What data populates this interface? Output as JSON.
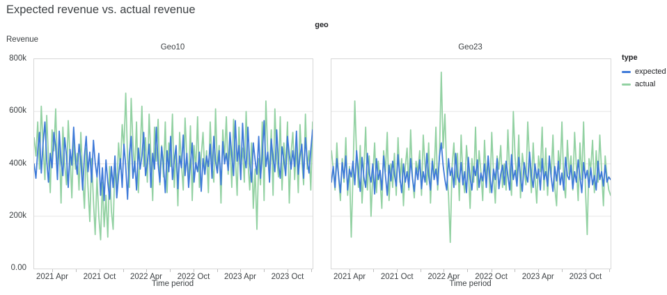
{
  "title": "Expected revenue vs. actual revenue",
  "chart_data": {
    "type": "line",
    "facet_title": "geo",
    "ylabel": "Revenue",
    "xlabel": "Time period",
    "value_unit": "thousands",
    "x_range": [
      "2021 Jan",
      "2024 Jan"
    ],
    "x_interval": "weekly",
    "ylim": [
      0,
      800000
    ],
    "y_max": 800,
    "grid_on": true,
    "grid_color": "#e6e6e6",
    "y_gridlines": [
      200,
      400,
      600
    ],
    "y_ticks": [
      {
        "label": "800k",
        "value": 800
      },
      {
        "label": "600k",
        "value": 600
      },
      {
        "label": "400k",
        "value": 400
      },
      {
        "label": "200k",
        "value": 200
      },
      {
        "label": "0.00",
        "value": 0
      }
    ],
    "x_ticks_major": [
      {
        "label": "2021 Apr",
        "f": 0.0675
      },
      {
        "label": "2021 Oct",
        "f": 0.2375
      },
      {
        "label": "2022 Apr",
        "f": 0.405
      },
      {
        "label": "2022 Oct",
        "f": 0.575
      },
      {
        "label": "2023 Apr",
        "f": 0.7425
      },
      {
        "label": "2023 Oct",
        "f": 0.9125
      }
    ],
    "x_ticks_minor_f": [
      0.1525,
      0.3213,
      0.49,
      0.6588,
      0.8275,
      0.9963
    ],
    "legend": {
      "title": "type",
      "position": "right",
      "items": [
        {
          "label": "expected",
          "color": "#3d79d8"
        },
        {
          "label": "actual",
          "color": "#92d1a2"
        }
      ]
    },
    "panels": [
      {
        "title": "Geo10",
        "series": [
          {
            "name": "actual",
            "color": "#92d1a2",
            "values": [
              500,
              430,
              560,
              380,
              620,
              470,
              340,
              585,
              420,
              290,
              530,
              450,
              610,
              365,
              480,
              250,
              540,
              400,
              320,
              565,
              430,
              270,
              495,
              380,
              440,
              300,
              520,
              350,
              230,
              460,
              310,
              180,
              420,
              260,
              130,
              350,
              200,
              110,
              330,
              160,
              280,
              120,
              390,
              220,
              150,
              410,
              300,
              480,
              380,
              550,
              460,
              670,
              420,
              310,
              650,
              480,
              370,
              560,
              290,
              440,
              620,
              390,
              500,
              330,
              590,
              430,
              260,
              540,
              410,
              570,
              320,
              470,
              350,
              560,
              290,
              480,
              390,
              590,
              310,
              450,
              240,
              520,
              400,
              300,
              575,
              420,
              330,
              545,
              260,
              470,
              380,
              580,
              310,
              430,
              520,
              360,
              450,
              290,
              560,
              400,
              330,
              610,
              380,
              470,
              250,
              530,
              420,
              580,
              360,
              490,
              310,
              570,
              430,
              280,
              540,
              390,
              460,
              330,
              600,
              410,
              300,
              480,
              230,
              380,
              150,
              420,
              320,
              560,
              260,
              640,
              450,
              370,
              530,
              280,
              610,
              420,
              350,
              580,
              300,
              480,
              390,
              560,
              250,
              440,
              520,
              340,
              470,
              290,
              550,
              410,
              320,
              590,
              380,
              450,
              300,
              560
            ]
          },
          {
            "name": "expected",
            "color": "#3d79d8",
            "values": [
              400,
              345,
              450,
              520,
              365,
              480,
              560,
              415,
              330,
              440,
              385,
              520,
              465,
              340,
              525,
              410,
              355,
              500,
              430,
              310,
              455,
              395,
              540,
              420,
              360,
              475,
              415,
              300,
              430,
              505,
              370,
              445,
              330,
              490,
              405,
              350,
              440,
              280,
              385,
              260,
              415,
              330,
              265,
              390,
              310,
              430,
              270,
              355,
              420,
              310,
              475,
              390,
              265,
              435,
              505,
              345,
              410,
              300,
              460,
              380,
              430,
              520,
              355,
              405,
              475,
              310,
              440,
              380,
              540,
              400,
              330,
              465,
              395,
              290,
              450,
              370,
              505,
              340,
              415,
              470,
              305,
              430,
              385,
              510,
              355,
              440,
              310,
              400,
              480,
              330,
              405,
              370,
              445,
              295,
              420,
              360,
              430,
              390,
              475,
              345,
              505,
              410,
              365,
              450,
              320,
              485,
              400,
              440,
              375,
              520,
              430,
              355,
              565,
              410,
              470,
              340,
              555,
              425,
              385,
              540,
              400,
              330,
              480,
              415,
              360,
              505,
              345,
              435,
              565,
              390,
              445,
              330,
              495,
              420,
              370,
              530,
              400,
              345,
              465,
              415,
              355,
              505,
              435,
              380,
              450,
              390,
              525,
              360,
              430,
              475,
              345,
              500,
              410,
              365,
              455,
              530
            ]
          }
        ]
      },
      {
        "title": "Geo23",
        "series": [
          {
            "name": "actual",
            "color": "#92d1a2",
            "values": [
              450,
              380,
              300,
              480,
              350,
              260,
              420,
              330,
              500,
              280,
              390,
              120,
              360,
              640,
              430,
              310,
              470,
              250,
              380,
              540,
              300,
              430,
              200,
              360,
              480,
              290,
              410,
              340,
              230,
              450,
              370,
              520,
              260,
              400,
              310,
              440,
              280,
              500,
              330,
              420,
              240,
              390,
              460,
              300,
              530,
              350,
              270,
              410,
              370,
              450,
              280,
              510,
              390,
              320,
              480,
              250,
              420,
              360,
              540,
              300,
              430,
              750,
              460,
              590,
              380,
              280,
              100,
              390,
              480,
              320,
              440,
              260,
              510,
              350,
              290,
              470,
              380,
              230,
              420,
              330,
              540,
              300,
              450,
              370,
              260,
              490,
              340,
              420,
              290,
              520,
              360,
              250,
              430,
              380,
              470,
              310,
              400,
              300,
              530,
              360,
              280,
              600,
              420,
              340,
              510,
              270,
              440,
              380,
              320,
              560,
              410,
              290,
              480,
              350,
              250,
              430,
              370,
              540,
              300,
              460,
              280,
              420,
              350,
              510,
              310,
              240,
              450,
              380,
              560,
              330,
              270,
              490,
              360,
              430,
              300,
              520,
              390,
              260,
              480,
              340,
              560,
              310,
              130,
              420,
              380,
              490,
              290,
              450,
              330,
              510,
              370,
              240,
              430,
              350,
              300,
              280
            ]
          },
          {
            "name": "expected",
            "color": "#3d79d8",
            "values": [
              330,
              390,
              310,
              420,
              355,
              290,
              405,
              345,
              430,
              300,
              380,
              350,
              410,
              320,
              450,
              370,
              295,
              425,
              350,
              310,
              440,
              365,
              330,
              400,
              285,
              420,
              340,
              375,
              300,
              430,
              355,
              280,
              395,
              335,
              410,
              360,
              315,
              435,
              350,
              290,
              400,
              330,
              370,
              310,
              420,
              345,
              295,
              385,
              340,
              415,
              305,
              370,
              330,
              440,
              355,
              300,
              410,
              340,
              380,
              320,
              430,
              480,
              395,
              340,
              300,
              420,
              355,
              385,
              310,
              440,
              350,
              330,
              405,
              320,
              370,
              290,
              425,
              345,
              300,
              390,
              355,
              415,
              310,
              365,
              335,
              400,
              310,
              430,
              350,
              290,
              380,
              340,
              420,
              305,
              360,
              395,
              320,
              410,
              355,
              300,
              435,
              340,
              375,
              315,
              425,
              350,
              295,
              405,
              360,
              330,
              445,
              355,
              310,
              400,
              345,
              380,
              300,
              420,
              340,
              370,
              315,
              430,
              350,
              295,
              390,
              335,
              410,
              320,
              365,
              300,
              425,
              355,
              340,
              395,
              305,
              370,
              330,
              415,
              350,
              290,
              405,
              345,
              375,
              310,
              385,
              320,
              355,
              300,
              410,
              340,
              370,
              315,
              395,
              330,
              350,
              340
            ]
          }
        ]
      }
    ]
  }
}
